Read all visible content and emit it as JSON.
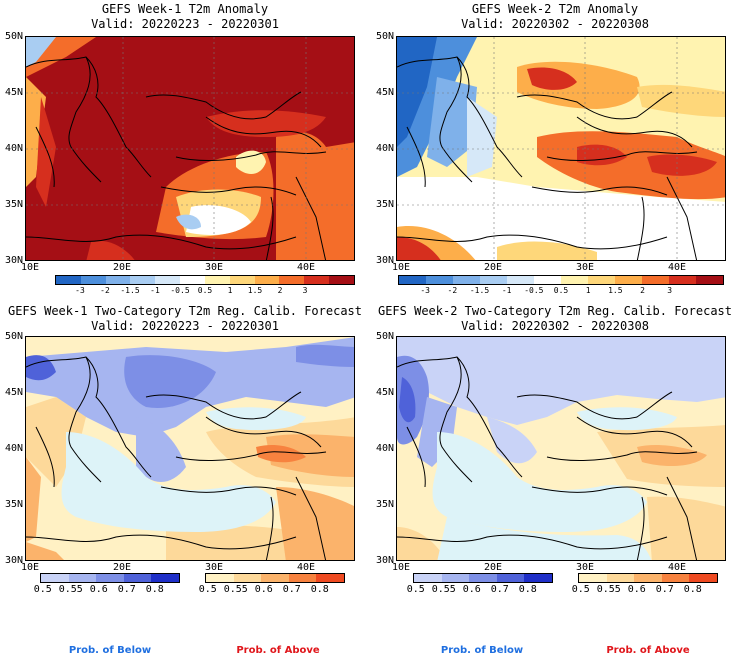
{
  "panels": [
    {
      "title": "GEFS Week-1 T2m Anomaly",
      "valid": "Valid: 20220223 - 20220301"
    },
    {
      "title": "GEFS Week-2 T2m Anomaly",
      "valid": "Valid: 20220302 - 20220308"
    },
    {
      "title": "GEFS Week-1 Two-Category T2m Reg. Calib. Forecast",
      "valid": "Valid: 20220223 - 20220301"
    },
    {
      "title": "GEFS Week-2 Two-Category T2m Reg. Calib. Forecast",
      "valid": "Valid: 20220302 - 20220308"
    }
  ],
  "lat_labels": [
    "50N",
    "45N",
    "40N",
    "35N",
    "30N"
  ],
  "lon_labels": [
    "10E",
    "20E",
    "30E",
    "40E"
  ],
  "anomaly_colorbar": {
    "labels": [
      "-3",
      "-2",
      "-1.5",
      "-1",
      "-0.5",
      "0.5",
      "1",
      "1.5",
      "2",
      "3"
    ],
    "colors": [
      "#2166c4",
      "#4d8fdc",
      "#7fb1ea",
      "#a9cdf2",
      "#d6e8f8",
      "#ffffff",
      "#fff3b0",
      "#fed77a",
      "#fdae4a",
      "#f46d2a",
      "#d62f1e",
      "#a50f15"
    ]
  },
  "prob_below_colorbar": {
    "labels": [
      "0.5",
      "0.55",
      "0.6",
      "0.7",
      "0.8"
    ],
    "colors": [
      "#c9d3f7",
      "#a6b5f0",
      "#7d8fe6",
      "#4f62d9",
      "#1f2fc8"
    ]
  },
  "prob_above_colorbar": {
    "labels": [
      "0.5",
      "0.55",
      "0.6",
      "0.7",
      "0.8"
    ],
    "colors": [
      "#fff1c4",
      "#fdd99a",
      "#fbb36b",
      "#f7823f",
      "#ef4a21"
    ]
  },
  "prob_of_below_label": "Prob. of Below",
  "prob_of_above_label": "Prob. of Above",
  "colors": {
    "below_text": "#1f6fe0",
    "above_text": "#e0161b",
    "sea": "#ddf3f8"
  }
}
